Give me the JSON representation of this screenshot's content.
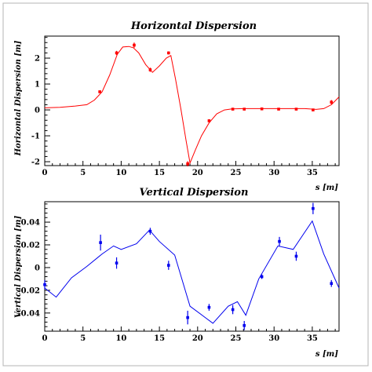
{
  "colors": {
    "frame": "#b5b5b5",
    "horizontal": "#ff0000",
    "vertical": "#0000ee",
    "axis": "#000000"
  },
  "chart_data": [
    {
      "type": "line",
      "title": "Horizontal Dispersion",
      "xlabel": "s [m]",
      "ylabel": "Horizontal Dispersion [m]",
      "xlim": [
        0,
        38.5
      ],
      "ylim": [
        -2.15,
        2.85
      ],
      "xticks": [
        0,
        5,
        10,
        15,
        20,
        25,
        30,
        35
      ],
      "yticks": [
        -2,
        -1,
        0,
        1,
        2
      ],
      "grid": false,
      "series": [
        {
          "kind": "model-line",
          "x": [
            0,
            2,
            4,
            5.5,
            6.5,
            7.5,
            8.5,
            9.5,
            10.2,
            11,
            11.6,
            12.3,
            13.2,
            14.1,
            15,
            15.9,
            16.5,
            17.1,
            17.8,
            18.5,
            19,
            19.7,
            20.5,
            21.5,
            22.5,
            23.5,
            24.5,
            26,
            28,
            30,
            32,
            34,
            35.5,
            36.5,
            37.5,
            38.5
          ],
          "y": [
            0.08,
            0.1,
            0.15,
            0.2,
            0.38,
            0.7,
            1.35,
            2.15,
            2.43,
            2.45,
            2.4,
            2.2,
            1.75,
            1.45,
            1.7,
            2.0,
            2.1,
            1.2,
            0.05,
            -1.2,
            -2.05,
            -1.55,
            -1.0,
            -0.5,
            -0.15,
            0.0,
            0.04,
            0.05,
            0.05,
            0.05,
            0.05,
            0.05,
            0.02,
            0.05,
            0.2,
            0.5
          ]
        },
        {
          "kind": "measurements",
          "x": [
            7.2,
            9.4,
            11.7,
            13.8,
            16.2,
            18.7,
            21.5,
            24.6,
            26.1,
            28.4,
            30.6,
            32.9,
            35.1,
            37.5
          ],
          "y": [
            0.7,
            2.2,
            2.5,
            1.55,
            2.2,
            -2.08,
            -0.42,
            0.03,
            0.03,
            0.04,
            0.03,
            0.03,
            0.0,
            0.3
          ],
          "err": [
            0.05,
            0.08,
            0.1,
            0.08,
            0.06,
            0.1,
            0.06,
            0.03,
            0.03,
            0.03,
            0.03,
            0.03,
            0.03,
            0.08
          ]
        }
      ]
    },
    {
      "type": "line",
      "title": "Vertical Dispersion",
      "xlabel": "s [m]",
      "ylabel": "Vertical Dispersion [m]",
      "xlim": [
        0,
        38.5
      ],
      "ylim": [
        -0.056,
        0.058
      ],
      "xticks": [
        0,
        5,
        10,
        15,
        20,
        25,
        30,
        35
      ],
      "yticks": [
        -0.04,
        -0.02,
        0,
        0.02,
        0.04
      ],
      "grid": false,
      "series": [
        {
          "kind": "model-line",
          "x": [
            0,
            1.5,
            3.5,
            5.5,
            7.5,
            9,
            10,
            12,
            13.7,
            15,
            17,
            19,
            21,
            22,
            24,
            25.2,
            26.3,
            28,
            30.5,
            32.5,
            35,
            36.5,
            38.5
          ],
          "y": [
            -0.018,
            -0.026,
            -0.009,
            0.001,
            0.012,
            0.019,
            0.016,
            0.021,
            0.033,
            0.023,
            0.011,
            -0.034,
            -0.044,
            -0.049,
            -0.034,
            -0.03,
            -0.042,
            -0.01,
            0.019,
            0.016,
            0.041,
            0.012,
            -0.018
          ]
        },
        {
          "kind": "measurements",
          "x": [
            0,
            7.3,
            9.4,
            13.8,
            16.2,
            18.7,
            21.5,
            24.6,
            26.1,
            28.4,
            30.7,
            32.9,
            35.1,
            37.5
          ],
          "y": [
            -0.015,
            0.022,
            0.004,
            0.032,
            0.002,
            -0.044,
            -0.035,
            -0.037,
            -0.051,
            -0.008,
            0.023,
            0.01,
            0.052,
            -0.014
          ],
          "err": [
            0.004,
            0.007,
            0.005,
            0.003,
            0.004,
            0.006,
            0.003,
            0.004,
            0.004,
            0.002,
            0.004,
            0.004,
            0.005,
            0.003
          ]
        }
      ]
    }
  ]
}
